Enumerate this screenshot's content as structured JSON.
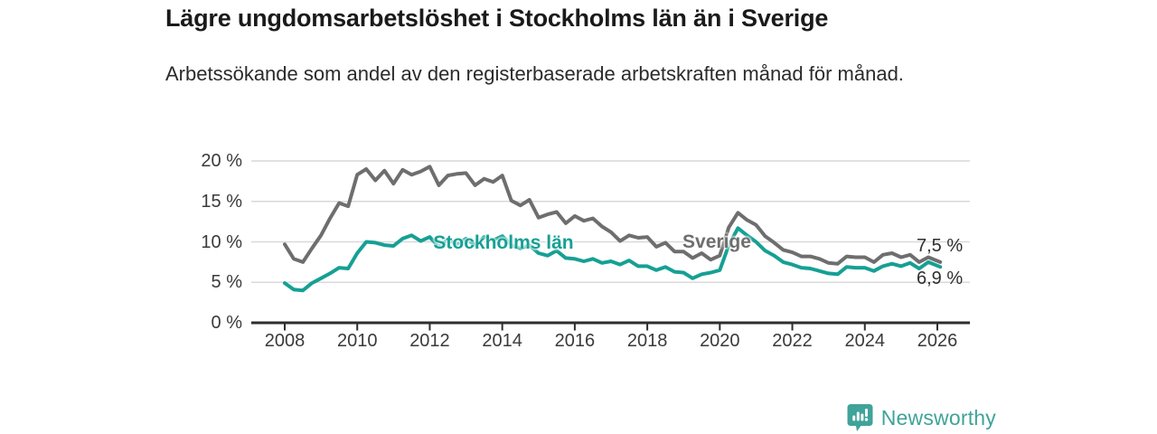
{
  "header": {
    "title": "Lägre ungdomsarbetslöshet i Stockholms län än i Sverige",
    "subtitle": "Arbetssökande som andel av den registerbaserade arbetskraften månad för månad."
  },
  "chart_data": {
    "type": "line",
    "title": "Lägre ungdomsarbetslöshet i Stockholms län än i Sverige",
    "subtitle": "Arbetssökande som andel av den registerbaserade arbetskraften månad för månad.",
    "unit": "%",
    "ylim": [
      0,
      20
    ],
    "grid": true,
    "y_ticks": [
      {
        "value": 20,
        "label": "20 %"
      },
      {
        "value": 15,
        "label": "15 %"
      },
      {
        "value": 10,
        "label": "10 %"
      },
      {
        "value": 5,
        "label": "5 %"
      },
      {
        "value": 0,
        "label": "0 %"
      }
    ],
    "x_ticks": [
      2008,
      2010,
      2012,
      2014,
      2016,
      2018,
      2020,
      2022,
      2024,
      2026
    ],
    "x": [
      2008,
      2008.25,
      2008.5,
      2008.75,
      2009,
      2009.25,
      2009.5,
      2009.75,
      2010,
      2010.25,
      2010.5,
      2010.75,
      2011,
      2011.25,
      2011.5,
      2011.75,
      2012,
      2012.25,
      2012.5,
      2012.75,
      2013,
      2013.25,
      2013.5,
      2013.75,
      2014,
      2014.25,
      2014.5,
      2014.75,
      2015,
      2015.25,
      2015.5,
      2015.75,
      2016,
      2016.25,
      2016.5,
      2016.75,
      2017,
      2017.25,
      2017.5,
      2017.75,
      2018,
      2018.25,
      2018.5,
      2018.75,
      2019,
      2019.25,
      2019.5,
      2019.75,
      2020,
      2020.25,
      2020.5,
      2020.75,
      2021,
      2021.25,
      2021.5,
      2021.75,
      2022,
      2022.25,
      2022.5,
      2022.75,
      2023,
      2023.25,
      2023.5,
      2023.75,
      2024,
      2024.25,
      2024.5,
      2024.75,
      2025,
      2025.25,
      2025.5,
      2025.75,
      2026.08
    ],
    "series": [
      {
        "name": "Sverige",
        "color": "#6e6e6e",
        "values": [
          9.7,
          7.9,
          7.5,
          9.2,
          10.8,
          12.9,
          14.8,
          14.4,
          18.3,
          19.0,
          17.6,
          18.8,
          17.2,
          18.9,
          18.3,
          18.7,
          19.3,
          17.0,
          18.2,
          18.4,
          18.5,
          17.0,
          17.8,
          17.4,
          18.2,
          15.1,
          14.5,
          15.2,
          13.0,
          13.4,
          13.7,
          12.3,
          13.2,
          12.6,
          12.9,
          11.9,
          11.2,
          10.1,
          10.8,
          10.5,
          10.6,
          9.4,
          9.9,
          8.8,
          8.8,
          8.0,
          8.6,
          7.8,
          8.3,
          11.8,
          13.6,
          12.7,
          12.1,
          10.7,
          9.9,
          9.0,
          8.7,
          8.2,
          8.2,
          7.9,
          7.4,
          7.3,
          8.2,
          8.1,
          8.1,
          7.5,
          8.4,
          8.6,
          8.1,
          8.4,
          7.5,
          8.1,
          7.5
        ]
      },
      {
        "name": "Stockholms län",
        "color": "#16a094",
        "values": [
          4.9,
          4.1,
          4.0,
          4.9,
          5.5,
          6.1,
          6.8,
          6.7,
          8.6,
          10.0,
          9.9,
          9.6,
          9.5,
          10.4,
          10.8,
          10.1,
          10.6,
          9.4,
          10.3,
          9.7,
          10.4,
          9.6,
          10.6,
          10.2,
          10.7,
          9.6,
          9.2,
          9.6,
          8.6,
          8.3,
          8.9,
          8.0,
          7.9,
          7.6,
          7.9,
          7.4,
          7.6,
          7.2,
          7.7,
          7.0,
          7.0,
          6.5,
          6.9,
          6.3,
          6.2,
          5.5,
          6.0,
          6.2,
          6.5,
          9.6,
          11.7,
          10.8,
          10.0,
          8.9,
          8.3,
          7.5,
          7.2,
          6.8,
          6.7,
          6.4,
          6.1,
          6.0,
          6.9,
          6.8,
          6.8,
          6.4,
          7.0,
          7.3,
          7.0,
          7.4,
          6.7,
          7.5,
          6.9
        ]
      }
    ],
    "end_labels": [
      {
        "series": "Sverige",
        "text": "7,5 %"
      },
      {
        "series": "Stockholms län",
        "text": "6,9 %"
      }
    ],
    "legend_position": "inline-labels"
  },
  "footer": {
    "brand": "Newsworthy",
    "brand_color": "#3fa39a"
  }
}
